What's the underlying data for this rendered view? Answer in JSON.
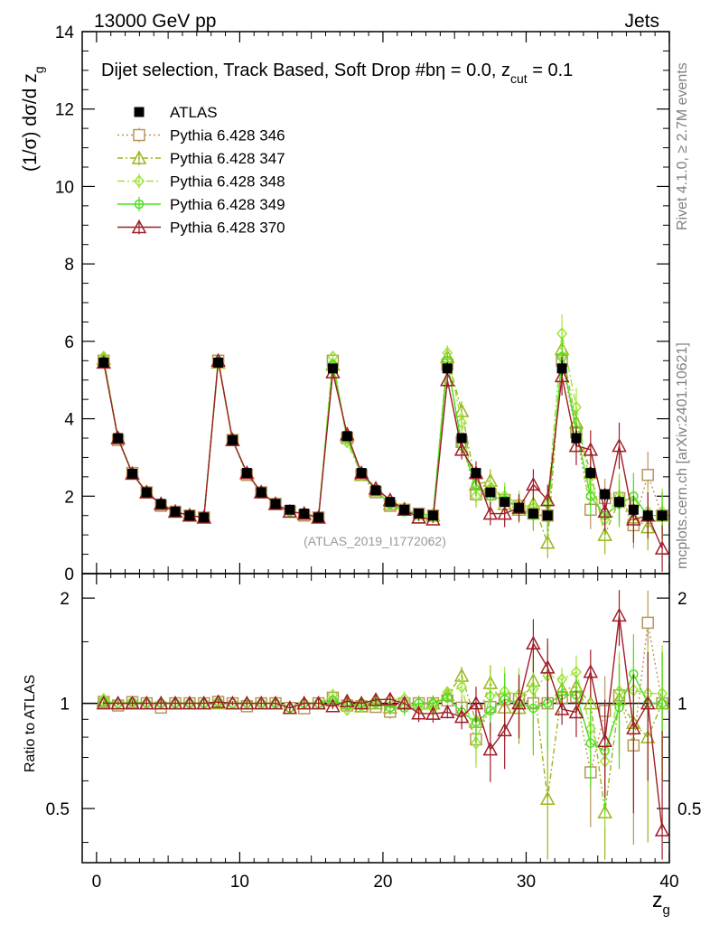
{
  "header": {
    "left": "13000 GeV pp",
    "right": "Jets"
  },
  "side_labels": {
    "rivet": "Rivet 4.1.0, ≥ 2.7M events",
    "mcplots": "mcplots.cern.ch [arXiv:2401.10621]"
  },
  "chart_data": {
    "type": "line",
    "title": "Dijet selection, Track Based, Soft Drop #bη = 0.0, z",
    "title_sub": "cut",
    "title_tail": " = 0.1",
    "watermark": "(ATLAS_2019_I1772062)",
    "ylabel": "(1/σ) dσ/d z",
    "ylabel_sub": "g",
    "xlabel": "z",
    "xlabel_sub": "g",
    "ratio_ylabel": "Ratio to ATLAS",
    "xlim": [
      -1,
      40
    ],
    "ylim": [
      0,
      14
    ],
    "ratio_ylim": [
      0.35,
      2.35
    ],
    "x_ticks": [
      "0",
      "10",
      "20",
      "30",
      "40"
    ],
    "y_ticks": [
      "0",
      "2",
      "4",
      "6",
      "8",
      "10",
      "12",
      "14"
    ],
    "ratio_ticks": [
      "0.5",
      "1",
      "2"
    ],
    "x": [
      0.5,
      1.5,
      2.5,
      3.5,
      4.5,
      5.5,
      6.5,
      7.5,
      8.5,
      9.5,
      10.5,
      11.5,
      12.5,
      13.5,
      14.5,
      15.5,
      16.5,
      17.5,
      18.5,
      19.5,
      20.5,
      21.5,
      22.5,
      23.5,
      24.5,
      25.5,
      26.5,
      27.5,
      28.5,
      29.5,
      30.5,
      31.5,
      32.5,
      33.5,
      34.5,
      35.5,
      36.5,
      37.5,
      38.5,
      39.5
    ],
    "data": {
      "name": "ATLAS",
      "values": [
        5.45,
        3.5,
        2.58,
        2.1,
        1.8,
        1.6,
        1.5,
        1.45,
        5.45,
        3.45,
        2.6,
        2.1,
        1.8,
        1.65,
        1.55,
        1.45,
        5.3,
        3.55,
        2.6,
        2.15,
        1.85,
        1.65,
        1.55,
        1.5,
        5.3,
        3.5,
        2.6,
        2.1,
        1.85,
        1.7,
        1.55,
        1.5,
        5.3,
        3.5,
        2.6,
        2.05,
        1.85,
        1.65,
        1.5,
        1.5
      ],
      "errors": [
        0.05,
        0.05,
        0.05,
        0.05,
        0.05,
        0.05,
        0.05,
        0.05,
        0.1,
        0.05,
        0.05,
        0.05,
        0.05,
        0.05,
        0.05,
        0.05,
        0.1,
        0.08,
        0.06,
        0.06,
        0.06,
        0.06,
        0.06,
        0.06,
        0.15,
        0.12,
        0.1,
        0.1,
        0.1,
        0.1,
        0.1,
        0.1,
        0.2,
        0.2,
        0.15,
        0.15,
        0.15,
        0.15,
        0.15,
        0.15
      ]
    },
    "series": [
      {
        "name": "Pythia 6.428 346",
        "color": "#b8955a",
        "marker": "square",
        "dash": "2,3",
        "values": [
          5.5,
          3.45,
          2.6,
          2.1,
          1.75,
          1.6,
          1.5,
          1.45,
          5.5,
          3.45,
          2.55,
          2.1,
          1.8,
          1.6,
          1.5,
          1.45,
          5.5,
          3.5,
          2.55,
          2.1,
          1.75,
          1.65,
          1.55,
          1.5,
          5.4,
          3.4,
          2.05,
          2.05,
          1.9,
          1.75,
          1.55,
          1.5,
          5.5,
          3.65,
          1.65,
          1.95,
          1.95,
          1.25,
          2.55,
          1.5
        ],
        "errors": [
          0.05,
          0.05,
          0.05,
          0.05,
          0.05,
          0.05,
          0.05,
          0.05,
          0.1,
          0.05,
          0.05,
          0.05,
          0.05,
          0.05,
          0.05,
          0.05,
          0.1,
          0.1,
          0.08,
          0.08,
          0.08,
          0.08,
          0.08,
          0.08,
          0.2,
          0.25,
          0.3,
          0.3,
          0.35,
          0.35,
          0.4,
          0.4,
          0.5,
          0.5,
          0.5,
          0.5,
          0.6,
          0.6,
          0.6,
          0.6
        ]
      },
      {
        "name": "Pythia 6.428 347",
        "color": "#9ab51d",
        "marker": "triangle",
        "dash": "6,3,2,3",
        "values": [
          5.55,
          3.5,
          2.58,
          2.1,
          1.8,
          1.6,
          1.5,
          1.45,
          5.45,
          3.45,
          2.6,
          2.1,
          1.8,
          1.6,
          1.55,
          1.45,
          5.4,
          3.55,
          2.55,
          2.15,
          1.8,
          1.65,
          1.45,
          1.5,
          5.6,
          4.2,
          2.3,
          2.4,
          1.8,
          1.65,
          1.8,
          0.8,
          5.8,
          3.9,
          2.6,
          1.0,
          1.9,
          1.45,
          1.2,
          1.5
        ],
        "errors": [
          0.05,
          0.05,
          0.05,
          0.05,
          0.05,
          0.05,
          0.05,
          0.05,
          0.1,
          0.05,
          0.05,
          0.05,
          0.05,
          0.05,
          0.05,
          0.05,
          0.1,
          0.1,
          0.08,
          0.08,
          0.08,
          0.08,
          0.08,
          0.08,
          0.2,
          0.25,
          0.3,
          0.3,
          0.35,
          0.35,
          0.4,
          0.4,
          0.5,
          0.5,
          0.5,
          0.5,
          0.6,
          0.6,
          0.6,
          0.6
        ]
      },
      {
        "name": "Pythia 6.428 348",
        "color": "#9ee53a",
        "marker": "diamond",
        "dash": "8,3,2,3",
        "values": [
          5.6,
          3.5,
          2.6,
          2.1,
          1.8,
          1.6,
          1.5,
          1.45,
          5.5,
          3.45,
          2.6,
          2.1,
          1.8,
          1.6,
          1.55,
          1.45,
          5.6,
          3.4,
          2.55,
          2.2,
          1.9,
          1.7,
          1.5,
          1.45,
          5.7,
          3.9,
          2.0,
          2.2,
          2.0,
          1.8,
          1.7,
          1.8,
          6.2,
          4.3,
          2.2,
          1.4,
          2.0,
          1.8,
          1.6,
          1.6
        ],
        "errors": [
          0.05,
          0.05,
          0.05,
          0.05,
          0.05,
          0.05,
          0.05,
          0.05,
          0.1,
          0.05,
          0.05,
          0.05,
          0.05,
          0.05,
          0.05,
          0.05,
          0.1,
          0.1,
          0.08,
          0.08,
          0.08,
          0.08,
          0.08,
          0.08,
          0.2,
          0.25,
          0.3,
          0.3,
          0.35,
          0.35,
          0.4,
          0.4,
          0.5,
          0.5,
          0.5,
          0.5,
          0.6,
          0.6,
          0.6,
          0.6
        ]
      },
      {
        "name": "Pythia 6.428 349",
        "color": "#4ddf1c",
        "marker": "circle",
        "dash": "",
        "values": [
          5.5,
          3.5,
          2.6,
          2.1,
          1.8,
          1.6,
          1.5,
          1.45,
          5.5,
          3.45,
          2.6,
          2.1,
          1.8,
          1.6,
          1.55,
          1.45,
          5.4,
          3.5,
          2.6,
          2.15,
          1.8,
          1.6,
          1.55,
          1.5,
          5.5,
          3.3,
          2.3,
          2.0,
          1.9,
          1.7,
          1.5,
          1.5,
          5.6,
          3.7,
          2.0,
          1.5,
          1.8,
          2.0,
          1.5,
          1.5
        ],
        "errors": [
          0.05,
          0.05,
          0.05,
          0.05,
          0.05,
          0.05,
          0.05,
          0.05,
          0.1,
          0.05,
          0.05,
          0.05,
          0.05,
          0.05,
          0.05,
          0.05,
          0.1,
          0.1,
          0.08,
          0.08,
          0.08,
          0.08,
          0.08,
          0.08,
          0.2,
          0.25,
          0.3,
          0.3,
          0.35,
          0.35,
          0.4,
          0.4,
          0.5,
          0.5,
          0.5,
          0.5,
          0.6,
          0.6,
          0.6,
          0.6
        ]
      },
      {
        "name": "Pythia 6.428 370",
        "color": "#a01c27",
        "marker": "triangle",
        "dash": "",
        "values": [
          5.45,
          3.5,
          2.58,
          2.1,
          1.8,
          1.6,
          1.5,
          1.45,
          5.5,
          3.45,
          2.6,
          2.1,
          1.8,
          1.6,
          1.55,
          1.45,
          5.2,
          3.6,
          2.6,
          2.2,
          1.9,
          1.65,
          1.45,
          1.4,
          5.0,
          3.2,
          2.6,
          1.55,
          1.55,
          1.7,
          2.3,
          1.9,
          5.1,
          3.3,
          3.2,
          1.6,
          3.3,
          1.4,
          1.5,
          0.65
        ],
        "errors": [
          0.05,
          0.05,
          0.05,
          0.05,
          0.05,
          0.05,
          0.05,
          0.05,
          0.1,
          0.05,
          0.05,
          0.05,
          0.05,
          0.05,
          0.05,
          0.05,
          0.1,
          0.1,
          0.08,
          0.08,
          0.08,
          0.08,
          0.08,
          0.08,
          0.2,
          0.25,
          0.3,
          0.3,
          0.35,
          0.35,
          0.4,
          0.4,
          0.5,
          0.5,
          0.5,
          0.5,
          0.6,
          0.6,
          0.6,
          0.6
        ]
      }
    ]
  }
}
